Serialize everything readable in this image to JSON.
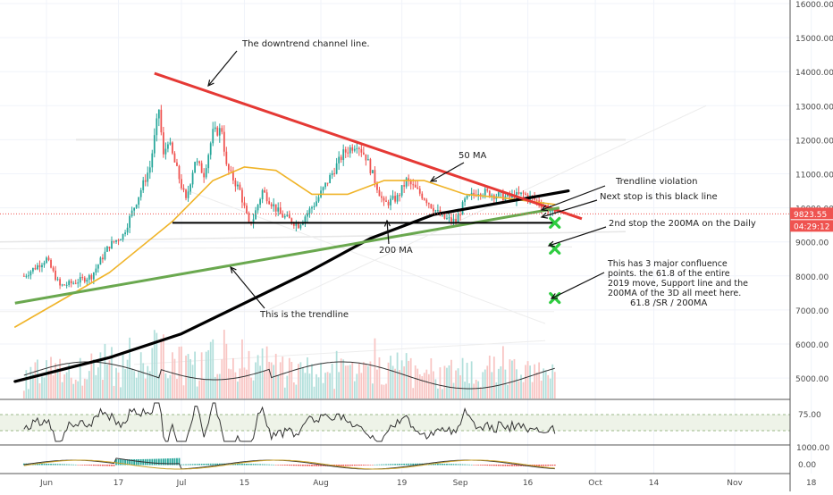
{
  "chart_data": {
    "type": "candlestick",
    "instrument_note": "",
    "x_axis": {
      "tick_labels": [
        "Jun",
        "17",
        "Jul",
        "15",
        "Aug",
        "19",
        "Sep",
        "16",
        "Oct",
        "14",
        "Nov",
        "18"
      ]
    },
    "price_axis": {
      "ylim": [
        4400,
        16400
      ],
      "tick_values": [
        5000,
        6000,
        7000,
        8000,
        9000,
        10000,
        11000,
        12000,
        13000,
        14000,
        15000,
        16000
      ],
      "tick_labels": [
        "5000.00",
        "6000.00",
        "7000.00",
        "8000.00",
        "9000.00",
        "10000.00",
        "11000.00",
        "12000.00",
        "13000.00",
        "14000.00",
        "15000.00",
        "16000.00"
      ],
      "last_price": "9823.55",
      "countdown": "04:29:12",
      "last_price_color": "#ef5350",
      "countdown_color": "#ef5350"
    },
    "rsi_axis": {
      "tick_labels": [
        "75.00"
      ]
    },
    "macd_axis": {
      "tick_labels": [
        "1000.00",
        "0.00"
      ]
    },
    "price_series_anchors": [
      [
        "2019-05-27",
        8000
      ],
      [
        "2019-06-01",
        8500
      ],
      [
        "2019-06-04",
        7700
      ],
      [
        "2019-06-07",
        7800
      ],
      [
        "2019-06-11",
        8000
      ],
      [
        "2019-06-15",
        8900
      ],
      [
        "2019-06-18",
        9200
      ],
      [
        "2019-06-21",
        10200
      ],
      [
        "2019-06-24",
        11200
      ],
      [
        "2019-06-26",
        12900
      ],
      [
        "2019-06-27",
        11500
      ],
      [
        "2019-06-28",
        12000
      ],
      [
        "2019-07-02",
        10200
      ],
      [
        "2019-07-04",
        11400
      ],
      [
        "2019-07-06",
        11000
      ],
      [
        "2019-07-08",
        12200
      ],
      [
        "2019-07-10",
        12300
      ],
      [
        "2019-07-11",
        11200
      ],
      [
        "2019-07-14",
        10500
      ],
      [
        "2019-07-16",
        9500
      ],
      [
        "2019-07-17",
        9700
      ],
      [
        "2019-07-19",
        10500
      ],
      [
        "2019-07-23",
        9800
      ],
      [
        "2019-07-27",
        9500
      ],
      [
        "2019-07-31",
        10200
      ],
      [
        "2019-08-03",
        10900
      ],
      [
        "2019-08-06",
        11600
      ],
      [
        "2019-08-09",
        11900
      ],
      [
        "2019-08-11",
        11500
      ],
      [
        "2019-08-13",
        10800
      ],
      [
        "2019-08-15",
        10100
      ],
      [
        "2019-08-18",
        10300
      ],
      [
        "2019-08-20",
        10800
      ],
      [
        "2019-08-24",
        10300
      ],
      [
        "2019-08-28",
        9700
      ],
      [
        "2019-08-31",
        9600
      ],
      [
        "2019-09-02",
        10200
      ],
      [
        "2019-09-05",
        10500
      ],
      [
        "2019-09-08",
        10400
      ],
      [
        "2019-09-12",
        10300
      ],
      [
        "2019-09-15",
        10400
      ],
      [
        "2019-09-18",
        10200
      ],
      [
        "2019-09-20",
        10000
      ],
      [
        "2019-09-22",
        9823.55
      ]
    ],
    "ma50_anchors": [
      [
        "2019-05-25",
        6500
      ],
      [
        "2019-06-15",
        8100
      ],
      [
        "2019-06-29",
        9600
      ],
      [
        "2019-07-08",
        10800
      ],
      [
        "2019-07-15",
        11200
      ],
      [
        "2019-07-22",
        11100
      ],
      [
        "2019-07-30",
        10400
      ],
      [
        "2019-08-07",
        10400
      ],
      [
        "2019-08-15",
        10800
      ],
      [
        "2019-08-24",
        10800
      ],
      [
        "2019-09-02",
        10400
      ],
      [
        "2019-09-10",
        10300
      ],
      [
        "2019-09-22",
        10100
      ]
    ],
    "ma200_anchors": [
      [
        "2019-05-25",
        4900
      ],
      [
        "2019-06-15",
        5600
      ],
      [
        "2019-07-01",
        6300
      ],
      [
        "2019-07-15",
        7200
      ],
      [
        "2019-07-29",
        8100
      ],
      [
        "2019-08-12",
        9100
      ],
      [
        "2019-08-26",
        9800
      ],
      [
        "2019-09-10",
        10150
      ],
      [
        "2019-09-25",
        10500
      ]
    ],
    "annotation_lines": [
      {
        "name": "downtrend-channel-line",
        "color": "#e53935",
        "points": [
          [
            "2019-06-25",
            13950
          ],
          [
            "2019-09-28",
            9680
          ]
        ]
      },
      {
        "name": "trendline",
        "color": "#6aa84f",
        "points": [
          [
            "2019-05-25",
            7200
          ],
          [
            "2019-09-23",
            10000
          ]
        ]
      },
      {
        "name": "support-line",
        "color": "#000000",
        "points": [
          [
            "2019-06-29",
            9560
          ],
          [
            "2019-09-22",
            9560
          ]
        ]
      }
    ],
    "target_markers": [
      {
        "name": "target-marker-1",
        "x": "2019-09-22",
        "y": 9560
      },
      {
        "name": "target-marker-2",
        "x": "2019-09-22",
        "y": 8800
      },
      {
        "name": "target-marker-3",
        "x": "2019-09-22",
        "y": 7350
      }
    ],
    "annotations": [
      {
        "name": "annotation-downtrend",
        "lines": [
          "The downtrend channel line."
        ]
      },
      {
        "name": "annotation-50ma",
        "lines": [
          "50 MA"
        ]
      },
      {
        "name": "annotation-trendline-violation",
        "lines": [
          "Trendline violation"
        ]
      },
      {
        "name": "annotation-next-stop",
        "lines": [
          "Next stop is this black line"
        ]
      },
      {
        "name": "annotation-2nd-stop",
        "lines": [
          "2nd stop the 200MA on the Daily"
        ]
      },
      {
        "name": "annotation-200ma",
        "lines": [
          "200 MA"
        ]
      },
      {
        "name": "annotation-confluence",
        "lines": [
          "This has 3 major confluence",
          "points. the 61.8 of the entire",
          "2019 move, Support line and the",
          "200MA of the 3D all meet here."
        ]
      },
      {
        "name": "annotation-618",
        "lines": [
          "61.8 /SR / 200MA"
        ]
      },
      {
        "name": "annotation-trendline",
        "lines": [
          "This is the trendline"
        ]
      }
    ],
    "colors": {
      "up": "#26a69a",
      "down": "#ef5350",
      "ma50": "#f0b429",
      "ma200": "#000000",
      "channel": "#e53935",
      "trendline": "#6aa84f",
      "marker": "#2ecc40",
      "grid": "#f0f3fa",
      "axis_text": "#4a4a4a"
    }
  }
}
